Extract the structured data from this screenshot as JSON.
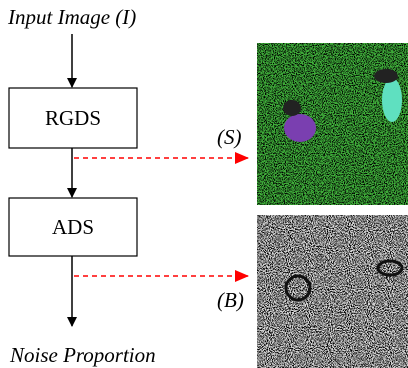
{
  "input_label": "Input Image (I)",
  "nodes": [
    {
      "label": "RGDS"
    },
    {
      "label": "ADS"
    }
  ],
  "outputs": [
    {
      "label": "(S)"
    },
    {
      "label": "(B)"
    }
  ],
  "output_label": "Noise Proportion"
}
